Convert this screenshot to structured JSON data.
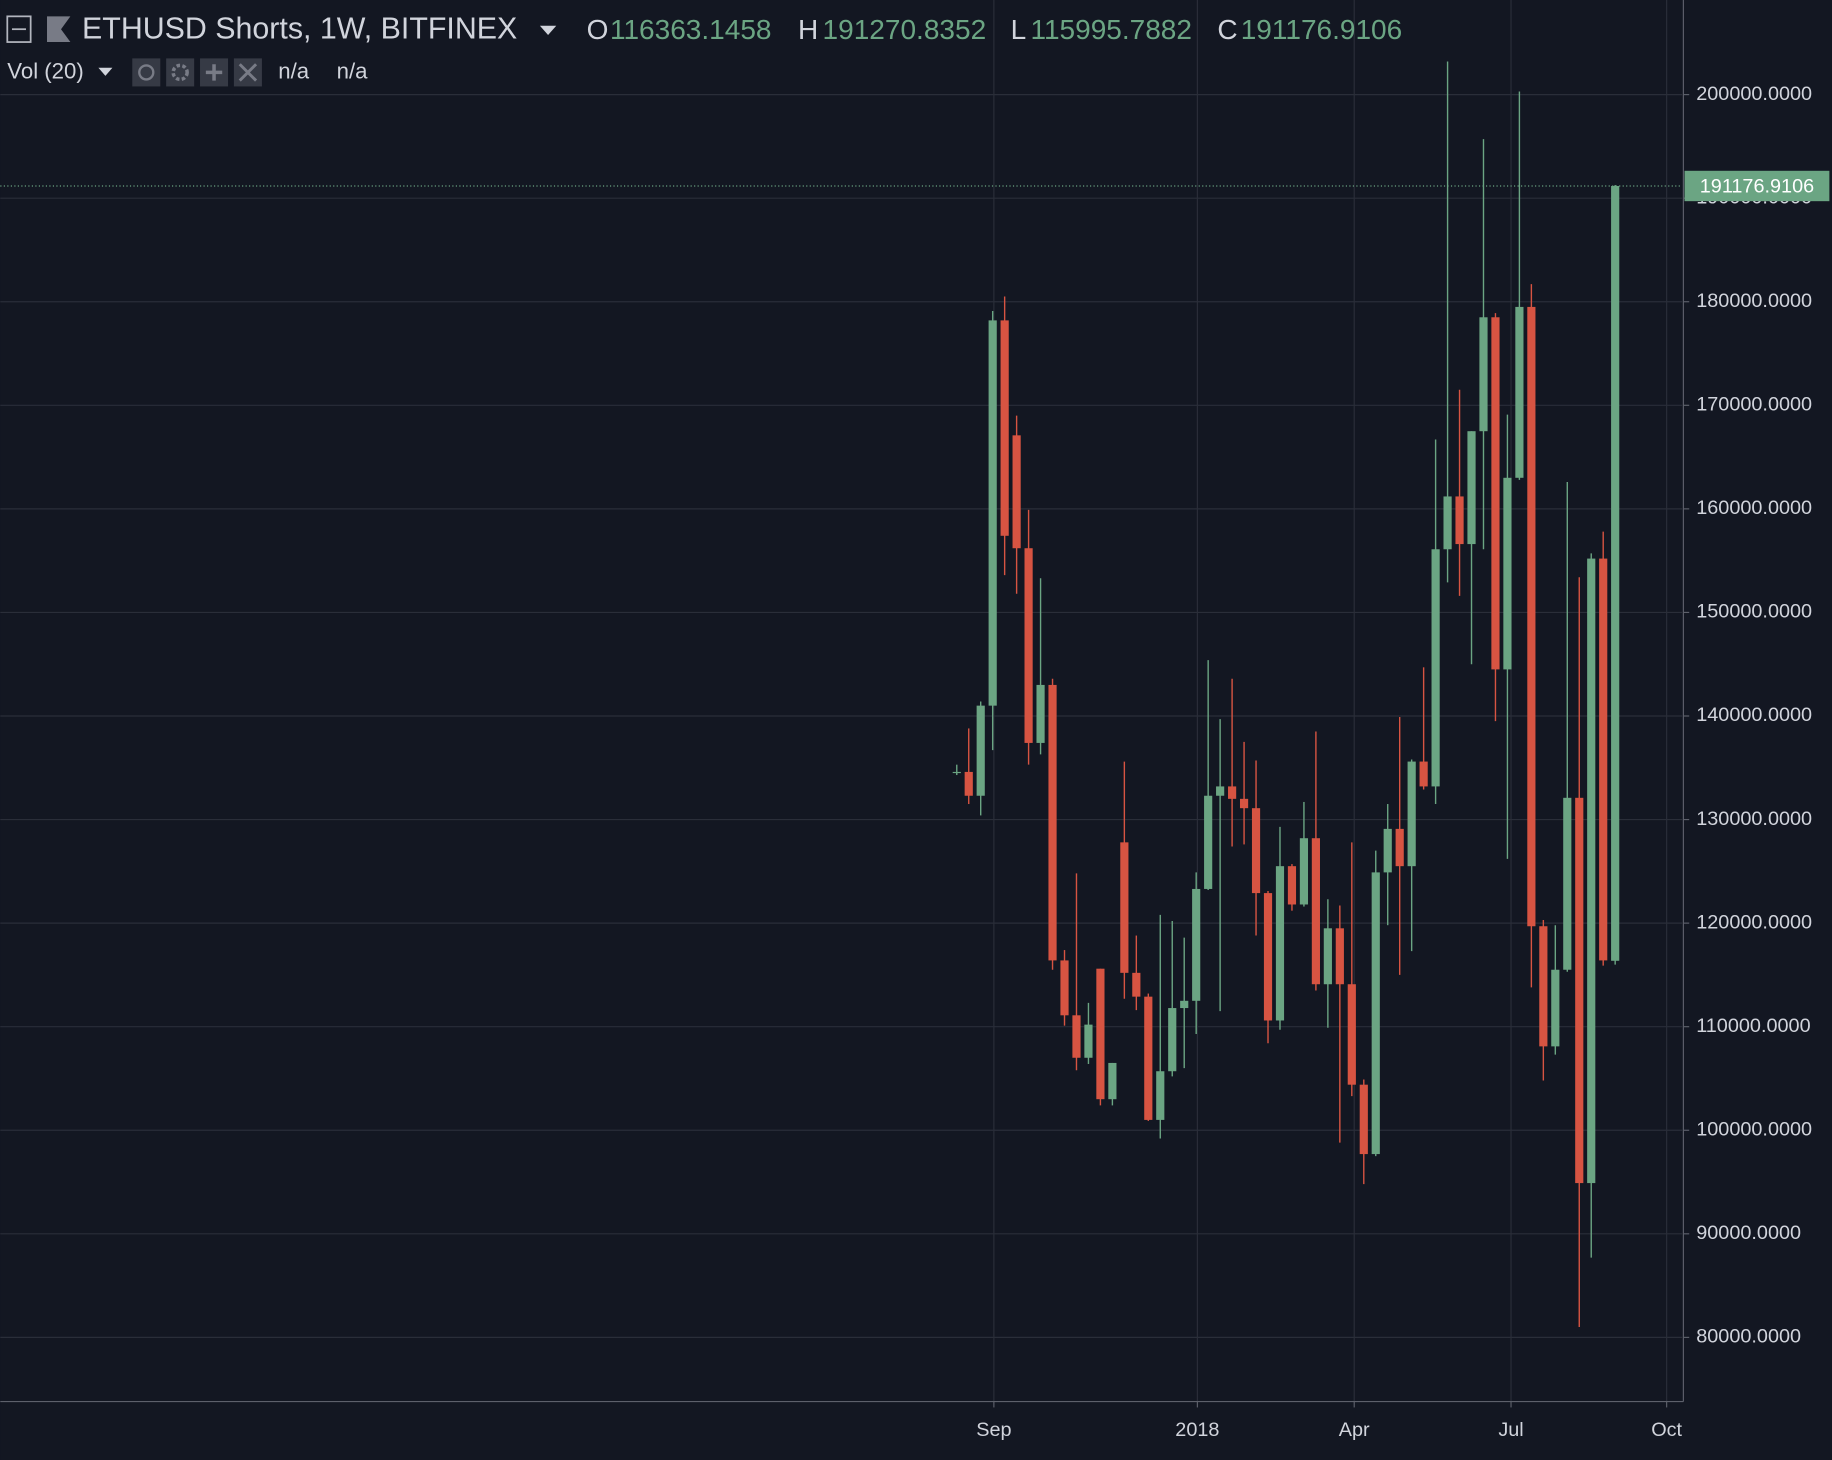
{
  "chart_data": {
    "type": "candlestick",
    "title": "ETHUSD Shorts, 1W, BITFINEX",
    "ohlc_labels": [
      "O",
      "H",
      "L",
      "C"
    ],
    "indicator": "Vol (20)",
    "indicator_values": [
      "n/a",
      "n/a"
    ],
    "x": [
      0,
      1,
      2,
      3,
      4,
      5,
      6,
      7,
      8,
      9,
      10,
      11,
      12,
      13,
      14,
      15,
      16,
      17,
      18,
      19,
      20,
      21,
      22,
      23,
      24,
      25,
      26,
      27,
      28,
      29,
      30,
      31,
      32,
      33,
      34,
      35,
      36,
      37,
      38,
      39,
      40,
      41,
      42,
      43,
      44,
      45,
      46,
      47,
      48,
      49,
      50,
      51,
      52,
      53,
      54,
      55
    ],
    "open": [
      134600,
      134600,
      132300,
      141000,
      178200,
      167100,
      156200,
      137400,
      143000,
      116400,
      111100,
      107000,
      115600,
      103000,
      127800,
      115200,
      112900,
      101000,
      105700,
      111800,
      112500,
      123300,
      132300,
      133200,
      132000,
      131100,
      122900,
      110600,
      125500,
      121800,
      128200,
      114100,
      119500,
      114100,
      104400,
      97700,
      124900,
      129100,
      125500,
      135600,
      133200,
      156100,
      161200,
      156600,
      167500,
      178500,
      144500,
      163000,
      179500,
      119700,
      108100,
      115500,
      132100,
      94900,
      155200,
      116363.1458
    ],
    "high": [
      135300,
      138800,
      141400,
      179100,
      180500,
      169000,
      159900,
      153300,
      143600,
      117400,
      124800,
      112300,
      115600,
      106500,
      135600,
      118800,
      113200,
      120800,
      120200,
      118600,
      124900,
      145400,
      139700,
      143600,
      137500,
      135700,
      123100,
      129300,
      125700,
      131700,
      138500,
      122300,
      121700,
      127800,
      104900,
      127000,
      131500,
      139900,
      135800,
      144700,
      166700,
      203200,
      171500,
      167500,
      195700,
      178900,
      169100,
      200300,
      181700,
      120300,
      119800,
      162600,
      153400,
      155700,
      157800,
      191270.8352
    ],
    "low": [
      134300,
      131500,
      130400,
      136700,
      153600,
      151800,
      135300,
      136300,
      115500,
      110100,
      105800,
      106400,
      102400,
      102400,
      112700,
      111600,
      100900,
      99200,
      105200,
      106000,
      109300,
      123200,
      111500,
      127400,
      127600,
      118800,
      108400,
      109700,
      121200,
      121600,
      113500,
      109900,
      98800,
      103300,
      94800,
      97500,
      119800,
      115000,
      117300,
      132900,
      131500,
      152900,
      151600,
      145000,
      156100,
      139500,
      126200,
      162800,
      113800,
      104800,
      107300,
      115300,
      81000,
      87700,
      115900,
      115995.7882
    ],
    "close": [
      134600,
      132300,
      141000,
      178200,
      157400,
      156200,
      137400,
      143000,
      116400,
      111100,
      107000,
      110200,
      103000,
      106500,
      115200,
      112900,
      101000,
      105700,
      111800,
      112500,
      123300,
      132300,
      133200,
      132000,
      131100,
      122900,
      110600,
      125500,
      121800,
      128200,
      114100,
      119500,
      114100,
      104400,
      97700,
      124900,
      129100,
      125500,
      135600,
      133200,
      156100,
      161200,
      156600,
      167500,
      178500,
      144500,
      163000,
      179500,
      119700,
      108100,
      115500,
      132100,
      94900,
      155200,
      116400,
      191176.9106
    ],
    "colors": {
      "up": "#6ba583",
      "down": "#d75442"
    },
    "xlim": [
      -79.9,
      60.6
    ],
    "xticks": [
      {
        "value": 3.1,
        "label": "Sep"
      },
      {
        "value": 20.1,
        "label": "2018"
      },
      {
        "value": 33.2,
        "label": "Apr"
      },
      {
        "value": 46.3,
        "label": "Jul"
      },
      {
        "value": 59.3,
        "label": "Oct"
      }
    ],
    "ylim": [
      73800,
      209135
    ],
    "yticks": [
      {
        "value": 80000,
        "label": "80000.0000"
      },
      {
        "value": 90000,
        "label": "90000.0000"
      },
      {
        "value": 100000,
        "label": "100000.0000"
      },
      {
        "value": 110000,
        "label": "110000.0000"
      },
      {
        "value": 120000,
        "label": "120000.0000"
      },
      {
        "value": 130000,
        "label": "130000.0000"
      },
      {
        "value": 140000,
        "label": "140000.0000"
      },
      {
        "value": 150000,
        "label": "150000.0000"
      },
      {
        "value": 160000,
        "label": "160000.0000"
      },
      {
        "value": 170000,
        "label": "170000.0000"
      },
      {
        "value": 180000,
        "label": "180000.0000"
      },
      {
        "value": 190000,
        "label": "190000.0000"
      },
      {
        "value": 200000,
        "label": "200000.0000"
      }
    ],
    "grid": true
  }
}
